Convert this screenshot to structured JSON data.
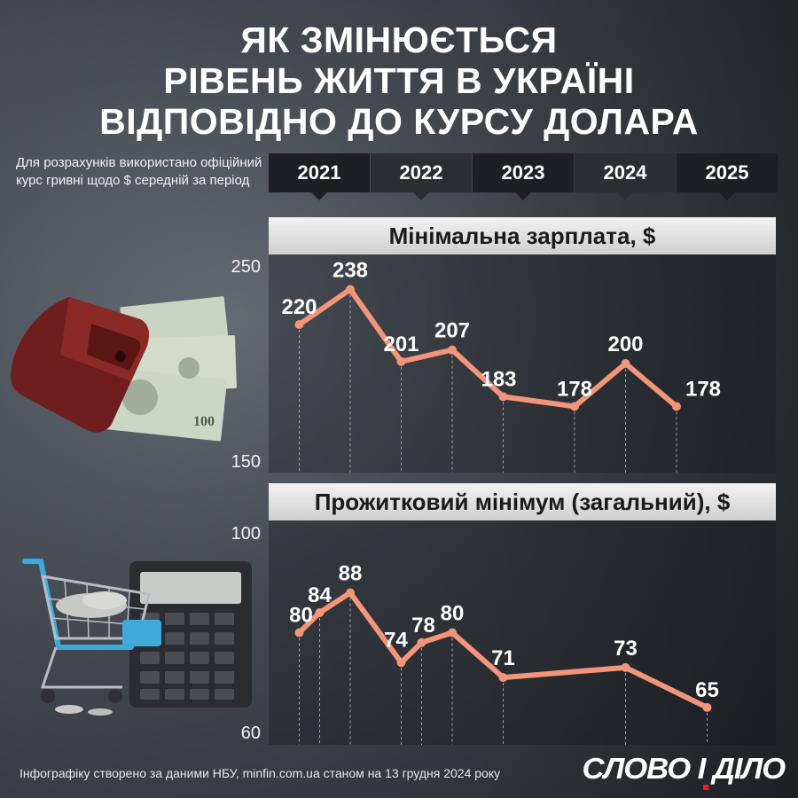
{
  "title": {
    "line1": "ЯК ЗМІНЮЄТЬСЯ",
    "line2": "РІВЕНЬ ЖИТТЯ В УКРАЇНІ",
    "line3": "ВІДПОВІДНО ДО КУРСУ ДОЛАРА"
  },
  "note": "Для розрахунків використано офіційний курс гривні щодо $ середній за період",
  "years": [
    "2021",
    "2022",
    "2023",
    "2024",
    "2025"
  ],
  "footer": "Інфографіку створено за даними НБУ, minfin.com.ua станом на 13 грудня 2024 року",
  "logo": "СЛОВО І ДІЛО",
  "colors": {
    "line": "#f2957a",
    "band_bg": "#e6e6e6",
    "year_bg": "#1d1f22"
  },
  "illustrations": {
    "top": "wallet-with-dollars",
    "bottom": "shopping-cart-and-calculator"
  },
  "chart_data": [
    {
      "type": "line",
      "title": "Мінімальна зарплата, $",
      "ylim": [
        150,
        250
      ],
      "yticks": [
        "250",
        "150"
      ],
      "x": [
        2021.3,
        2021.8,
        2022.3,
        2022.8,
        2023.3,
        2024.0,
        2024.5,
        2025.0
      ],
      "values": [
        220,
        238,
        201,
        207,
        183,
        178,
        200,
        178
      ],
      "labels": [
        "220",
        "238",
        "201",
        "207",
        "183",
        "178",
        "200",
        "178"
      ]
    },
    {
      "type": "line",
      "title": "Прожитковий мінімум (загальний), $",
      "ylim": [
        60,
        100
      ],
      "yticks": [
        "100",
        "60"
      ],
      "x": [
        2021.3,
        2021.5,
        2021.8,
        2022.3,
        2022.5,
        2022.8,
        2023.3,
        2024.5,
        2025.3
      ],
      "values": [
        80,
        84,
        88,
        74,
        78,
        80,
        71,
        73,
        65
      ],
      "labels": [
        "80",
        "84",
        "88",
        "74",
        "78",
        "80",
        "71",
        "73",
        "65"
      ]
    }
  ]
}
